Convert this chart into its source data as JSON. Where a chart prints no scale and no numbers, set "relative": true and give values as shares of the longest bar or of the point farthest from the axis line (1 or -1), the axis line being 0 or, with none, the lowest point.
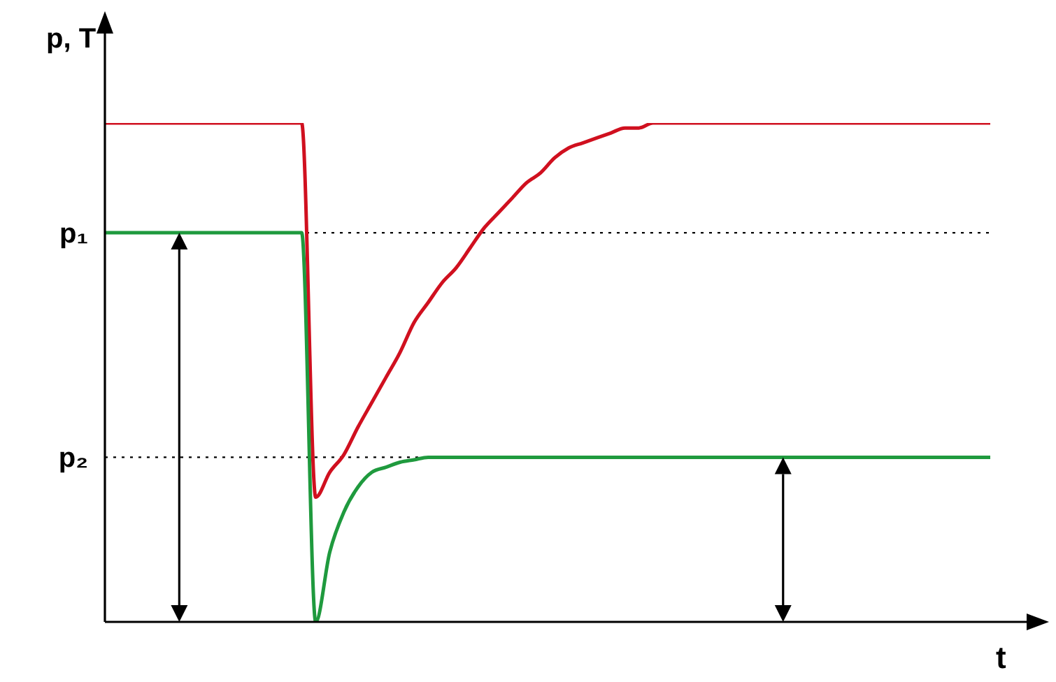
{
  "chart_data": {
    "type": "line",
    "relative": true,
    "xlabel": "t",
    "ylabel": "p, T",
    "grid": false,
    "legend": false,
    "marker": "none",
    "line_style": "solid",
    "categories": [
      null,
      null,
      null,
      null,
      null,
      null,
      null,
      null,
      null,
      null,
      null,
      null,
      null,
      null,
      null,
      null,
      null,
      null,
      null,
      null,
      null,
      null,
      null,
      null,
      null,
      null,
      null,
      null,
      null,
      null,
      null,
      null,
      null,
      null,
      null,
      null,
      null,
      null,
      null,
      null,
      null,
      null,
      null,
      null,
      null,
      null,
      null,
      null,
      null,
      null,
      null,
      null,
      null,
      null,
      null,
      null,
      null,
      null,
      null,
      null,
      null,
      null,
      null,
      null
    ],
    "series": [
      {
        "color": "#d0101f",
        "values": [
          1,
          1,
          1,
          1,
          1,
          1,
          1,
          1,
          1,
          1,
          1,
          1,
          1,
          1,
          1,
          0.25,
          0.3,
          0.335,
          0.39,
          0.44,
          0.49,
          0.54,
          0.6,
          0.64,
          0.68,
          0.71,
          0.75,
          0.79,
          0.82,
          0.85,
          0.88,
          0.9,
          0.93,
          0.95,
          0.96,
          0.97,
          0.98,
          0.99,
          0.99,
          1,
          1,
          1,
          1,
          1,
          1,
          1,
          1,
          1,
          1,
          1,
          1,
          1,
          1,
          1,
          1,
          1,
          1,
          1,
          1,
          1,
          1,
          1,
          1,
          1
        ]
      },
      {
        "color": "#1f9a3e",
        "values": [
          0.78,
          0.78,
          0.78,
          0.78,
          0.78,
          0.78,
          0.78,
          0.78,
          0.78,
          0.78,
          0.78,
          0.78,
          0.78,
          0.78,
          0.78,
          0,
          0.14,
          0.22,
          0.27,
          0.3,
          0.31,
          0.32,
          0.325,
          0.33,
          0.33,
          0.33,
          0.33,
          0.33,
          0.33,
          0.33,
          0.33,
          0.33,
          0.33,
          0.33,
          0.33,
          0.33,
          0.33,
          0.33,
          0.33,
          0.33,
          0.33,
          0.33,
          0.33,
          0.33,
          0.33,
          0.33,
          0.33,
          0.33,
          0.33,
          0.33,
          0.33,
          0.33,
          0.33,
          0.33,
          0.33,
          0.33,
          0.33,
          0.33,
          0.33,
          0.33,
          0.33,
          0.33,
          0.33,
          0.33
        ]
      }
    ],
    "ref_lines": [
      {
        "axis": "y",
        "value": 0.78,
        "label": "p₁",
        "color": "#000000",
        "line_style": "dotted"
      },
      {
        "axis": "y",
        "value": 0.33,
        "label": "p₂",
        "color": "#000000",
        "line_style": "dotted"
      }
    ]
  }
}
